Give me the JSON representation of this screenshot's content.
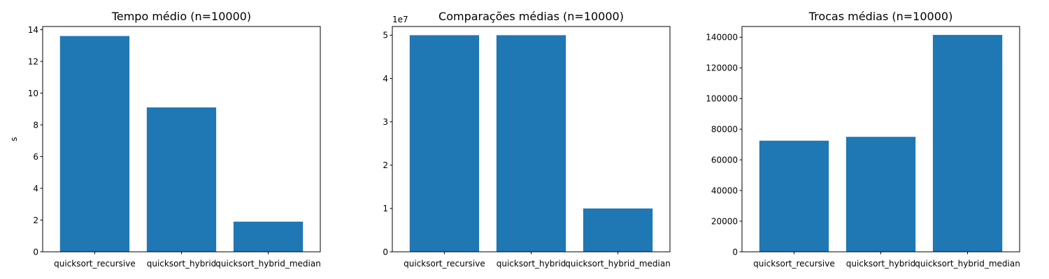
{
  "chart_data": [
    {
      "type": "bar",
      "title": "Tempo médio (n=10000)",
      "xlabel": "",
      "ylabel": "s",
      "categories": [
        "quicksort_recursive",
        "quicksort_hybrid",
        "quicksort_hybrid_median"
      ],
      "values": [
        13.6,
        9.1,
        1.9
      ],
      "ylim": [
        0,
        14.2
      ],
      "yticks": [
        0,
        2,
        4,
        6,
        8,
        10,
        12,
        14
      ],
      "ytick_labels": [
        "0",
        "2",
        "4",
        "6",
        "8",
        "10",
        "12",
        "14"
      ],
      "offset_label": "",
      "color": "#1f77b4",
      "grid": false
    },
    {
      "type": "bar",
      "title": "Comparações médias (n=10000)",
      "xlabel": "",
      "ylabel": "",
      "categories": [
        "quicksort_recursive",
        "quicksort_hybrid",
        "quicksort_hybrid_median"
      ],
      "values": [
        49995000,
        49995000,
        10000000
      ],
      "ylim": [
        0,
        52000000
      ],
      "yticks": [
        0,
        10000000,
        20000000,
        30000000,
        40000000,
        50000000
      ],
      "ytick_labels": [
        "0",
        "1",
        "2",
        "3",
        "4",
        "5"
      ],
      "offset_label": "1e7",
      "color": "#1f77b4",
      "grid": false
    },
    {
      "type": "bar",
      "title": "Trocas médias (n=10000)",
      "xlabel": "",
      "ylabel": "",
      "categories": [
        "quicksort_recursive",
        "quicksort_hybrid",
        "quicksort_hybrid_median"
      ],
      "values": [
        72500,
        75000,
        141500
      ],
      "ylim": [
        0,
        147000
      ],
      "yticks": [
        0,
        20000,
        40000,
        60000,
        80000,
        100000,
        120000,
        140000
      ],
      "ytick_labels": [
        "0",
        "20000",
        "40000",
        "60000",
        "80000",
        "100000",
        "120000",
        "140000"
      ],
      "offset_label": "",
      "color": "#1f77b4",
      "grid": false
    }
  ]
}
